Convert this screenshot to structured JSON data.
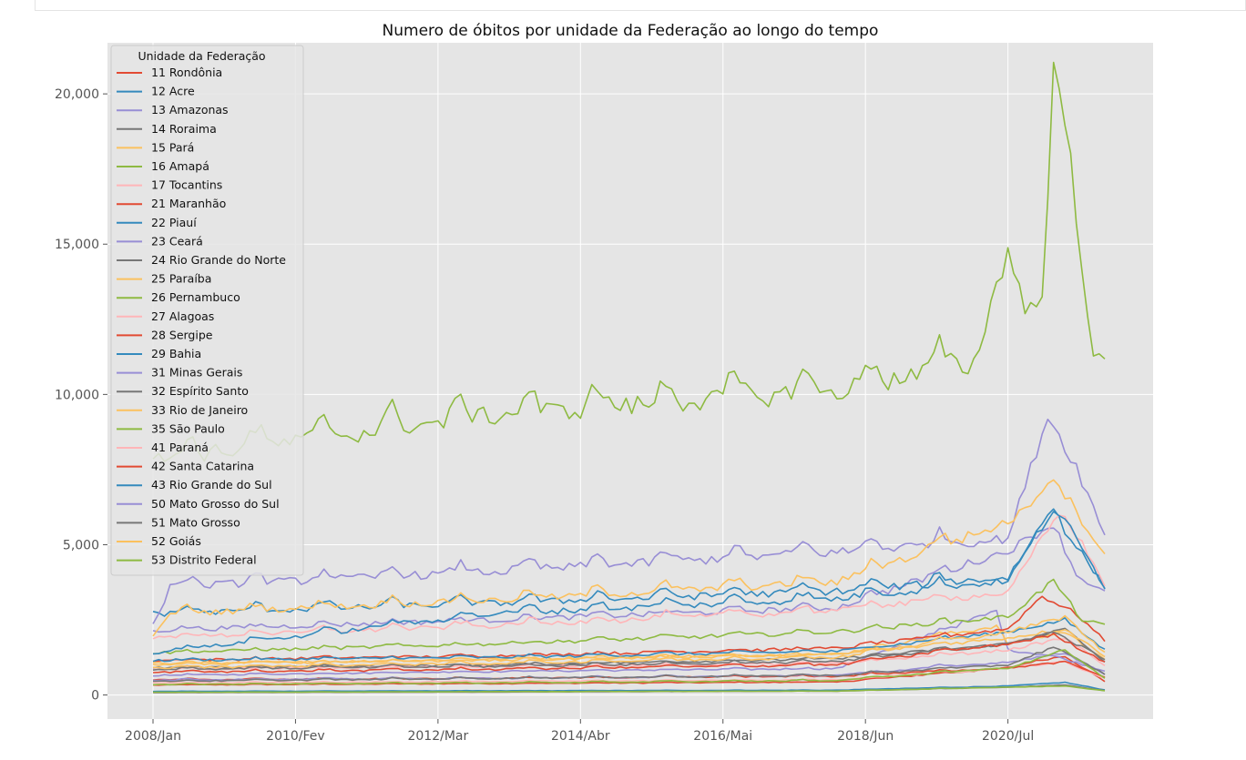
{
  "chart_data": {
    "type": "line",
    "title": "Numero de óbitos por unidade da Federação ao longo do tempo",
    "xlabel": "",
    "ylabel": "",
    "x_tick_labels": [
      "2008/Jan",
      "2010/Fev",
      "2012/Mar",
      "2014/Abr",
      "2016/Mai",
      "2018/Jun",
      "2020/Jul"
    ],
    "x_tick_index": [
      0,
      25,
      50,
      75,
      100,
      125,
      150
    ],
    "y_ticks": [
      0,
      5000,
      10000,
      15000,
      20000
    ],
    "y_tick_labels": [
      "0",
      "5,000",
      "10,000",
      "15,000",
      "20,000"
    ],
    "ylim": [
      -800,
      21700
    ],
    "n_months": 168,
    "grid": true,
    "background": "#e5e5e5",
    "legend": {
      "title": "Unidade da Federação",
      "position": "upper-left"
    },
    "series_style": {
      "base": "flat monthly levels with seasonal winter peaks; common pandemic surge near index 150-162",
      "seasonal_note": "values listed in anchors"
    },
    "series": [
      {
        "name": "11 Rondônia",
        "color": "#E24A33",
        "anchors": [
          [
            0,
            330
          ],
          [
            60,
            380
          ],
          [
            120,
            430
          ],
          [
            150,
            900
          ],
          [
            154,
            1100
          ],
          [
            160,
            1300
          ],
          [
            167,
            450
          ]
        ]
      },
      {
        "name": "12 Acre",
        "color": "#348ABD",
        "anchors": [
          [
            0,
            120
          ],
          [
            60,
            140
          ],
          [
            120,
            160
          ],
          [
            150,
            300
          ],
          [
            160,
            420
          ],
          [
            167,
            170
          ]
        ]
      },
      {
        "name": "13 Amazonas",
        "color": "#988ED5",
        "anchors": [
          [
            0,
            650
          ],
          [
            60,
            780
          ],
          [
            120,
            880
          ],
          [
            148,
            2800
          ],
          [
            150,
            1500
          ],
          [
            158,
            1300
          ],
          [
            167,
            800
          ]
        ]
      },
      {
        "name": "14 Roraima",
        "color": "#777777",
        "anchors": [
          [
            0,
            80
          ],
          [
            60,
            100
          ],
          [
            120,
            130
          ],
          [
            150,
            260
          ],
          [
            160,
            330
          ],
          [
            167,
            150
          ]
        ]
      },
      {
        "name": "15 Pará",
        "color": "#FBC15E",
        "anchors": [
          [
            0,
            1000
          ],
          [
            60,
            1200
          ],
          [
            120,
            1350
          ],
          [
            148,
            2300
          ],
          [
            150,
            1700
          ],
          [
            160,
            2100
          ],
          [
            167,
            1200
          ]
        ]
      },
      {
        "name": "16 Amapá",
        "color": "#8EBA42",
        "anchors": [
          [
            0,
            90
          ],
          [
            60,
            110
          ],
          [
            120,
            130
          ],
          [
            150,
            260
          ],
          [
            160,
            300
          ],
          [
            167,
            140
          ]
        ]
      },
      {
        "name": "17 Tocantins",
        "color": "#FFB5B8",
        "anchors": [
          [
            0,
            400
          ],
          [
            60,
            450
          ],
          [
            120,
            500
          ],
          [
            150,
            900
          ],
          [
            160,
            1100
          ],
          [
            167,
            550
          ]
        ]
      },
      {
        "name": "21 Maranhão",
        "color": "#E24A33",
        "anchors": [
          [
            0,
            1150
          ],
          [
            60,
            1300
          ],
          [
            120,
            1550
          ],
          [
            150,
            2200
          ],
          [
            156,
            3300
          ],
          [
            162,
            2700
          ],
          [
            167,
            1800
          ]
        ]
      },
      {
        "name": "22 Piauí",
        "color": "#348ABD",
        "anchors": [
          [
            0,
            1150
          ],
          [
            60,
            1250
          ],
          [
            120,
            1450
          ],
          [
            150,
            2100
          ],
          [
            160,
            2500
          ],
          [
            167,
            1500
          ]
        ]
      },
      {
        "name": "23 Ceará",
        "color": "#988ED5",
        "anchors": [
          [
            0,
            2150
          ],
          [
            60,
            2500
          ],
          [
            120,
            2900
          ],
          [
            150,
            4800
          ],
          [
            158,
            5700
          ],
          [
            162,
            4000
          ],
          [
            167,
            3400
          ]
        ]
      },
      {
        "name": "24 Rio Grande do Norte",
        "color": "#777777",
        "anchors": [
          [
            0,
            900
          ],
          [
            60,
            1000
          ],
          [
            120,
            1200
          ],
          [
            150,
            1700
          ],
          [
            160,
            2200
          ],
          [
            167,
            1100
          ]
        ]
      },
      {
        "name": "25 Paraíba",
        "color": "#FBC15E",
        "anchors": [
          [
            0,
            1050
          ],
          [
            60,
            1150
          ],
          [
            120,
            1350
          ],
          [
            150,
            1900
          ],
          [
            160,
            2200
          ],
          [
            167,
            1300
          ]
        ]
      },
      {
        "name": "26 Pernambuco",
        "color": "#8EBA42",
        "anchors": [
          [
            0,
            1400
          ],
          [
            60,
            1700
          ],
          [
            120,
            2100
          ],
          [
            150,
            2600
          ],
          [
            158,
            3800
          ],
          [
            163,
            2500
          ],
          [
            167,
            2300
          ]
        ]
      },
      {
        "name": "27 Alagoas",
        "color": "#FFB5B8",
        "anchors": [
          [
            0,
            850
          ],
          [
            60,
            950
          ],
          [
            120,
            1050
          ],
          [
            150,
            1500
          ],
          [
            160,
            1900
          ],
          [
            167,
            1000
          ]
        ]
      },
      {
        "name": "28 Sergipe",
        "color": "#E24A33",
        "anchors": [
          [
            0,
            500
          ],
          [
            60,
            550
          ],
          [
            120,
            620
          ],
          [
            150,
            900
          ],
          [
            160,
            1100
          ],
          [
            167,
            600
          ]
        ]
      },
      {
        "name": "29 Bahia",
        "color": "#348ABD",
        "anchors": [
          [
            0,
            2700
          ],
          [
            60,
            3050
          ],
          [
            120,
            3450
          ],
          [
            150,
            3900
          ],
          [
            158,
            6300
          ],
          [
            160,
            5500
          ],
          [
            167,
            3600
          ]
        ]
      },
      {
        "name": "31 Minas Gerais",
        "color": "#988ED5",
        "anchors": [
          [
            0,
            2300
          ],
          [
            3,
            3600
          ],
          [
            60,
            4100
          ],
          [
            120,
            4750
          ],
          [
            150,
            5200
          ],
          [
            157,
            9300
          ],
          [
            162,
            7600
          ],
          [
            167,
            5300
          ]
        ]
      },
      {
        "name": "32 Espírito Santo",
        "color": "#777777",
        "anchors": [
          [
            0,
            850
          ],
          [
            60,
            950
          ],
          [
            120,
            1100
          ],
          [
            150,
            1700
          ],
          [
            158,
            2100
          ],
          [
            167,
            1200
          ]
        ]
      },
      {
        "name": "33 Rio de Janeiro",
        "color": "#FBC15E",
        "anchors": [
          [
            0,
            1900
          ],
          [
            3,
            2700
          ],
          [
            60,
            3150
          ],
          [
            120,
            3750
          ],
          [
            148,
            5600
          ],
          [
            152,
            6000
          ],
          [
            158,
            7300
          ],
          [
            162,
            6100
          ],
          [
            167,
            4700
          ]
        ]
      },
      {
        "name": "35 São Paulo",
        "color": "#8EBA42",
        "anchors": [
          [
            0,
            7800
          ],
          [
            60,
            9300
          ],
          [
            120,
            10100
          ],
          [
            144,
            11000
          ],
          [
            150,
            14900
          ],
          [
            153,
            12800
          ],
          [
            156,
            13200
          ],
          [
            158,
            20700
          ],
          [
            160,
            19200
          ],
          [
            165,
            11300
          ],
          [
            167,
            10900
          ]
        ]
      },
      {
        "name": "41 Paraná",
        "color": "#FFB5B8",
        "anchors": [
          [
            0,
            1900
          ],
          [
            60,
            2300
          ],
          [
            120,
            2800
          ],
          [
            150,
            3400
          ],
          [
            158,
            5800
          ],
          [
            160,
            6000
          ],
          [
            167,
            3700
          ]
        ]
      },
      {
        "name": "42 Santa Catarina",
        "color": "#E24A33",
        "anchors": [
          [
            0,
            750
          ],
          [
            60,
            850
          ],
          [
            120,
            1000
          ],
          [
            150,
            1700
          ],
          [
            158,
            2000
          ],
          [
            167,
            1100
          ]
        ]
      },
      {
        "name": "43 Rio Grande do Sul",
        "color": "#348ABD",
        "anchors": [
          [
            0,
            1400
          ],
          [
            60,
            2700
          ],
          [
            120,
            3200
          ],
          [
            150,
            3800
          ],
          [
            158,
            6200
          ],
          [
            161,
            5500
          ],
          [
            167,
            3600
          ]
        ]
      },
      {
        "name": "50 Mato Grosso do Sul",
        "color": "#988ED5",
        "anchors": [
          [
            0,
            500
          ],
          [
            60,
            550
          ],
          [
            120,
            650
          ],
          [
            150,
            1100
          ],
          [
            160,
            1400
          ],
          [
            167,
            700
          ]
        ]
      },
      {
        "name": "51 Mato Grosso",
        "color": "#777777",
        "anchors": [
          [
            0,
            450
          ],
          [
            60,
            550
          ],
          [
            120,
            650
          ],
          [
            150,
            1000
          ],
          [
            158,
            1600
          ],
          [
            167,
            700
          ]
        ]
      },
      {
        "name": "52 Goiás",
        "color": "#FBC15E",
        "anchors": [
          [
            0,
            900
          ],
          [
            60,
            1050
          ],
          [
            120,
            1250
          ],
          [
            150,
            2100
          ],
          [
            160,
            2600
          ],
          [
            167,
            1400
          ]
        ]
      },
      {
        "name": "53 Distrito Federal",
        "color": "#8EBA42",
        "anchors": [
          [
            0,
            350
          ],
          [
            60,
            400
          ],
          [
            120,
            480
          ],
          [
            150,
            900
          ],
          [
            160,
            1500
          ],
          [
            167,
            550
          ]
        ]
      }
    ]
  }
}
